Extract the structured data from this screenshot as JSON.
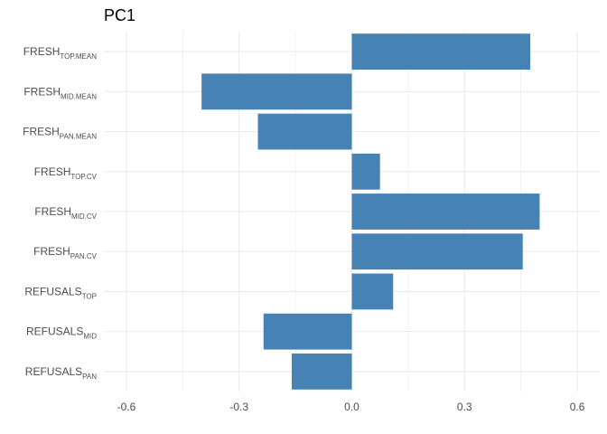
{
  "chart_data": {
    "type": "bar",
    "orientation": "horizontal",
    "title": "PC1",
    "xlabel": "",
    "ylabel": "",
    "xlim": [
      -0.66,
      0.66
    ],
    "x_ticks": [
      -0.6,
      -0.3,
      0.0,
      0.3,
      0.6
    ],
    "x_tick_labels": [
      "-0.6",
      "-0.3",
      "0.0",
      "0.3",
      "0.6"
    ],
    "grid": true,
    "bar_color": "#4682B4",
    "categories": [
      {
        "main": "FRESH",
        "sub": "TOP.MEAN"
      },
      {
        "main": "FRESH",
        "sub": "MID.MEAN"
      },
      {
        "main": "FRESH",
        "sub": "PAN.MEAN"
      },
      {
        "main": "FRESH",
        "sub": "TOP.CV"
      },
      {
        "main": "FRESH",
        "sub": "MID.CV"
      },
      {
        "main": "FRESH",
        "sub": "PAN.CV"
      },
      {
        "main": "REFUSALS",
        "sub": "TOP"
      },
      {
        "main": "REFUSALS",
        "sub": "MID"
      },
      {
        "main": "REFUSALS",
        "sub": "PAN"
      }
    ],
    "values": [
      0.475,
      -0.4,
      -0.25,
      0.075,
      0.5,
      0.455,
      0.11,
      -0.235,
      -0.16
    ]
  }
}
